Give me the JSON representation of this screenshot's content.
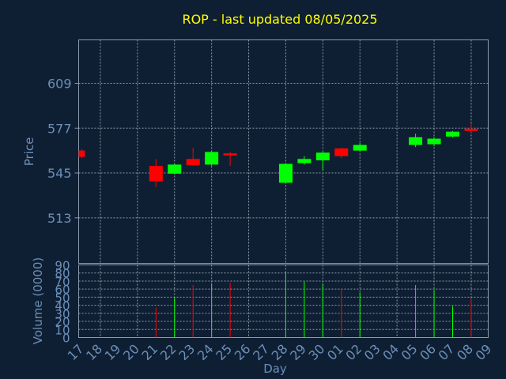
{
  "chart_data": {
    "type": "candlestick",
    "title": "ROP - last updated 08/05/2025",
    "xlabel": "Day",
    "price_panel": {
      "ylabel": "Price",
      "yticks": [
        513,
        545,
        577,
        609
      ],
      "ylim": [
        480.5,
        640
      ],
      "grid": true
    },
    "volume_panel": {
      "ylabel": "Volume (0000)",
      "yticks": [
        0,
        10,
        20,
        30,
        40,
        50,
        60,
        70,
        80,
        90
      ],
      "ylim": [
        0,
        90
      ],
      "grid": true
    },
    "x_tick_labels": [
      "17",
      "18",
      "19",
      "20",
      "21",
      "22",
      "23",
      "24",
      "25",
      "26",
      "27",
      "28",
      "29",
      "30",
      "01",
      "02",
      "03",
      "04",
      "05",
      "06",
      "07",
      "08",
      "09"
    ],
    "candles": [
      {
        "day": "17",
        "open": 561.0,
        "close": 556.5,
        "high": 562.0,
        "low": 555.5,
        "volume": 0
      },
      {
        "day": "21",
        "open": 550.0,
        "close": 539.0,
        "high": 555.0,
        "low": 535.0,
        "volume": 37
      },
      {
        "day": "22",
        "open": 544.5,
        "close": 551.0,
        "high": 551.0,
        "low": 544.0,
        "volume": 50
      },
      {
        "day": "23",
        "open": 555.0,
        "close": 550.5,
        "high": 563.0,
        "low": 550.0,
        "volume": 65
      },
      {
        "day": "24",
        "open": 551.0,
        "close": 560.0,
        "high": 560.5,
        "low": 550.0,
        "volume": 67
      },
      {
        "day": "25",
        "open": 559.0,
        "close": 557.5,
        "high": 560.0,
        "low": 550.0,
        "volume": 68
      },
      {
        "day": "28",
        "open": 538.0,
        "close": 551.5,
        "high": 551.5,
        "low": 538.0,
        "volume": 82
      },
      {
        "day": "29",
        "open": 552.0,
        "close": 555.0,
        "high": 557.0,
        "low": 551.0,
        "volume": 70
      },
      {
        "day": "30",
        "open": 554.0,
        "close": 559.5,
        "high": 560.0,
        "low": 547.0,
        "volume": 67
      },
      {
        "day": "01",
        "open": 562.5,
        "close": 557.0,
        "high": 563.0,
        "low": 555.5,
        "volume": 60
      },
      {
        "day": "02",
        "open": 561.0,
        "close": 565.0,
        "high": 566.5,
        "low": 560.5,
        "volume": 56
      },
      {
        "day": "05",
        "open": 565.0,
        "close": 570.5,
        "high": 573.0,
        "low": 563.5,
        "volume": 65
      },
      {
        "day": "06",
        "open": 565.5,
        "close": 569.5,
        "high": 570.5,
        "low": 564.0,
        "volume": 59
      },
      {
        "day": "07",
        "open": 571.0,
        "close": 574.5,
        "high": 575.0,
        "low": 570.5,
        "volume": 39
      },
      {
        "day": "08",
        "open": 576.5,
        "close": 575.0,
        "high": 580.0,
        "low": 574.0,
        "volume": 48
      }
    ],
    "colors": {
      "up": "#00ff00",
      "down": "#ff0000",
      "background": "#0f1f33",
      "title": "#ffff00",
      "label": "#6c8fb8",
      "grid": "#b8c4d0"
    }
  }
}
